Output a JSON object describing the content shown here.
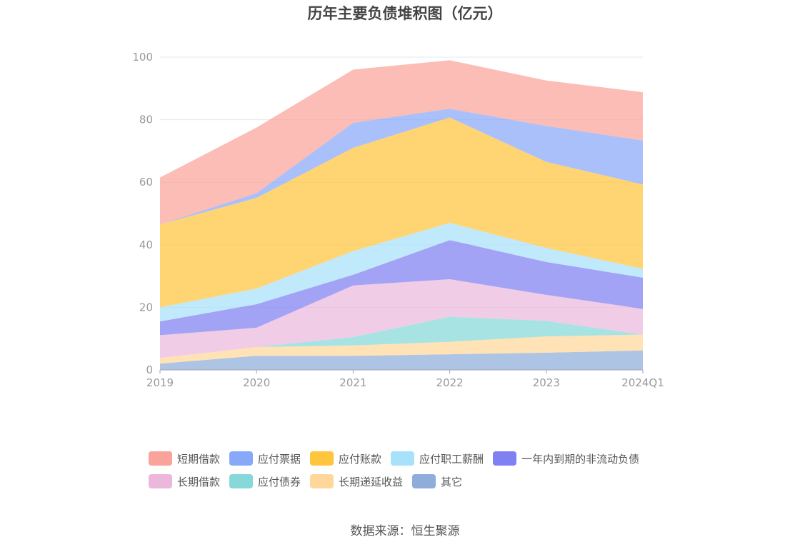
{
  "chart_data": {
    "type": "area",
    "stacked": true,
    "title": "历年主要负债堆积图（亿元）",
    "source": "数据来源：恒生聚源",
    "categories": [
      "2019",
      "2020",
      "2021",
      "2022",
      "2023",
      "2024Q1"
    ],
    "ylim": [
      0,
      100
    ],
    "yticks": [
      0,
      20,
      40,
      60,
      80,
      100
    ],
    "grid": true,
    "legend_position": "bottom",
    "series": [
      {
        "name": "其它",
        "color": "#8FADDB",
        "values": [
          2.0,
          4.5,
          4.5,
          5.0,
          5.5,
          6.2
        ]
      },
      {
        "name": "长期递延收益",
        "color": "#FFD79A",
        "values": [
          1.8,
          2.8,
          3.3,
          4.0,
          5.2,
          5.1
        ]
      },
      {
        "name": "应付债券",
        "color": "#86D8D9",
        "values": [
          0.0,
          0.0,
          2.7,
          8.0,
          5.0,
          0.0
        ]
      },
      {
        "name": "长期借款",
        "color": "#EBB8DC",
        "values": [
          7.3,
          6.2,
          16.5,
          12.0,
          8.3,
          8.2
        ]
      },
      {
        "name": "一年内到期的非流动负债",
        "color": "#7F80F2",
        "values": [
          4.4,
          7.5,
          3.4,
          12.5,
          10.5,
          10.0
        ]
      },
      {
        "name": "应付职工薪酬",
        "color": "#A8E1FA",
        "values": [
          4.5,
          5.0,
          7.6,
          5.5,
          4.5,
          2.8
        ]
      },
      {
        "name": "应付账款",
        "color": "#FFC53D",
        "values": [
          26.5,
          29.0,
          33.0,
          33.7,
          27.5,
          27.0
        ]
      },
      {
        "name": "应付票据",
        "color": "#88A8FA",
        "values": [
          0.0,
          1.5,
          8.0,
          2.8,
          11.5,
          14.0
        ]
      },
      {
        "name": "短期借款",
        "color": "#F9A39A",
        "values": [
          15.0,
          21.0,
          17.0,
          15.5,
          14.5,
          15.5
        ]
      }
    ]
  },
  "legend": {
    "items": [
      {
        "label": "短期借款",
        "color": "#F9A39A"
      },
      {
        "label": "应付票据",
        "color": "#88A8FA"
      },
      {
        "label": "应付账款",
        "color": "#FFC53D"
      },
      {
        "label": "应付职工薪酬",
        "color": "#A8E1FA"
      },
      {
        "label": "一年内到期的非流动负债",
        "color": "#7F80F2"
      },
      {
        "label": "长期借款",
        "color": "#EBB8DC"
      },
      {
        "label": "应付债券",
        "color": "#86D8D9"
      },
      {
        "label": "长期递延收益",
        "color": "#FFD79A"
      },
      {
        "label": "其它",
        "color": "#8FADDB"
      }
    ]
  }
}
